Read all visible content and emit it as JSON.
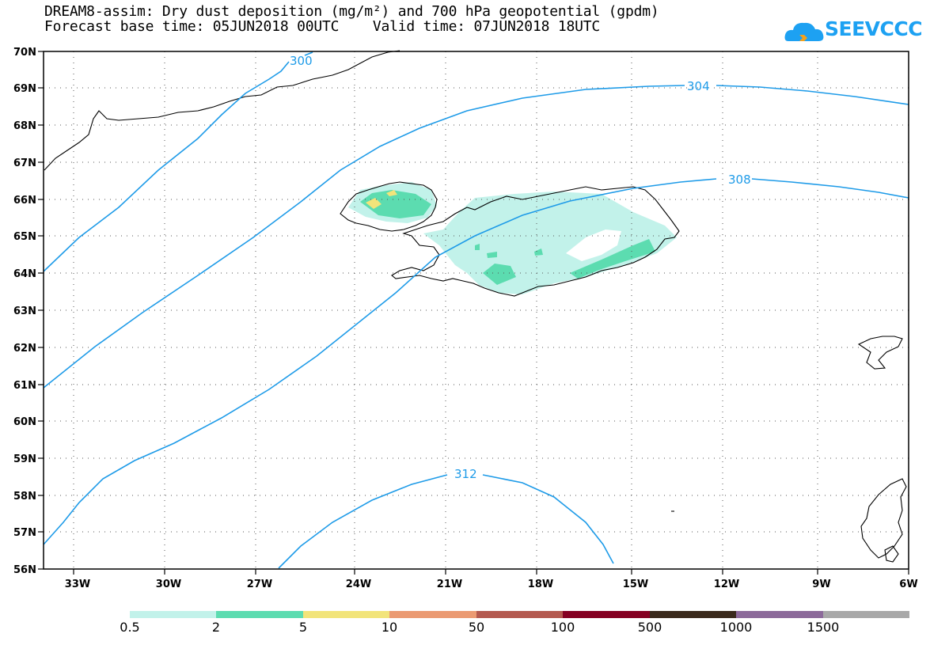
{
  "header": {
    "title_line1": "DREAM8-assim: Dry dust deposition (mg/m²) and 700 hPa geopotential (gpdm)",
    "title_line2": "Forecast base time: 05JUN2018 00UTC    Valid time: 07JUN2018 18UTC"
  },
  "logo": {
    "text": "SEEVCCC",
    "icon": "cloud-icon",
    "color": "#1da1f2"
  },
  "map": {
    "lat_labels": [
      "70N",
      "69N",
      "68N",
      "67N",
      "66N",
      "65N",
      "64N",
      "63N",
      "62N",
      "61N",
      "60N",
      "59N",
      "58N",
      "57N",
      "56N"
    ],
    "lon_labels": [
      "33W",
      "30W",
      "27W",
      "24W",
      "21W",
      "18W",
      "15W",
      "12W",
      "9W",
      "6W"
    ],
    "contour_labels": [
      "300",
      "304",
      "308",
      "312"
    ],
    "contour_color": "#1e9be8"
  },
  "colorbar": {
    "labels": [
      "0.5",
      "2",
      "5",
      "10",
      "50",
      "100",
      "500",
      "1000",
      "1500"
    ],
    "colors": [
      "#c2f2ea",
      "#5cdcb0",
      "#f2e47a",
      "#eb9a72",
      "#b4594f",
      "#850022",
      "#3a2a1c",
      "#8c6a9a",
      "#a8a8a8"
    ]
  }
}
